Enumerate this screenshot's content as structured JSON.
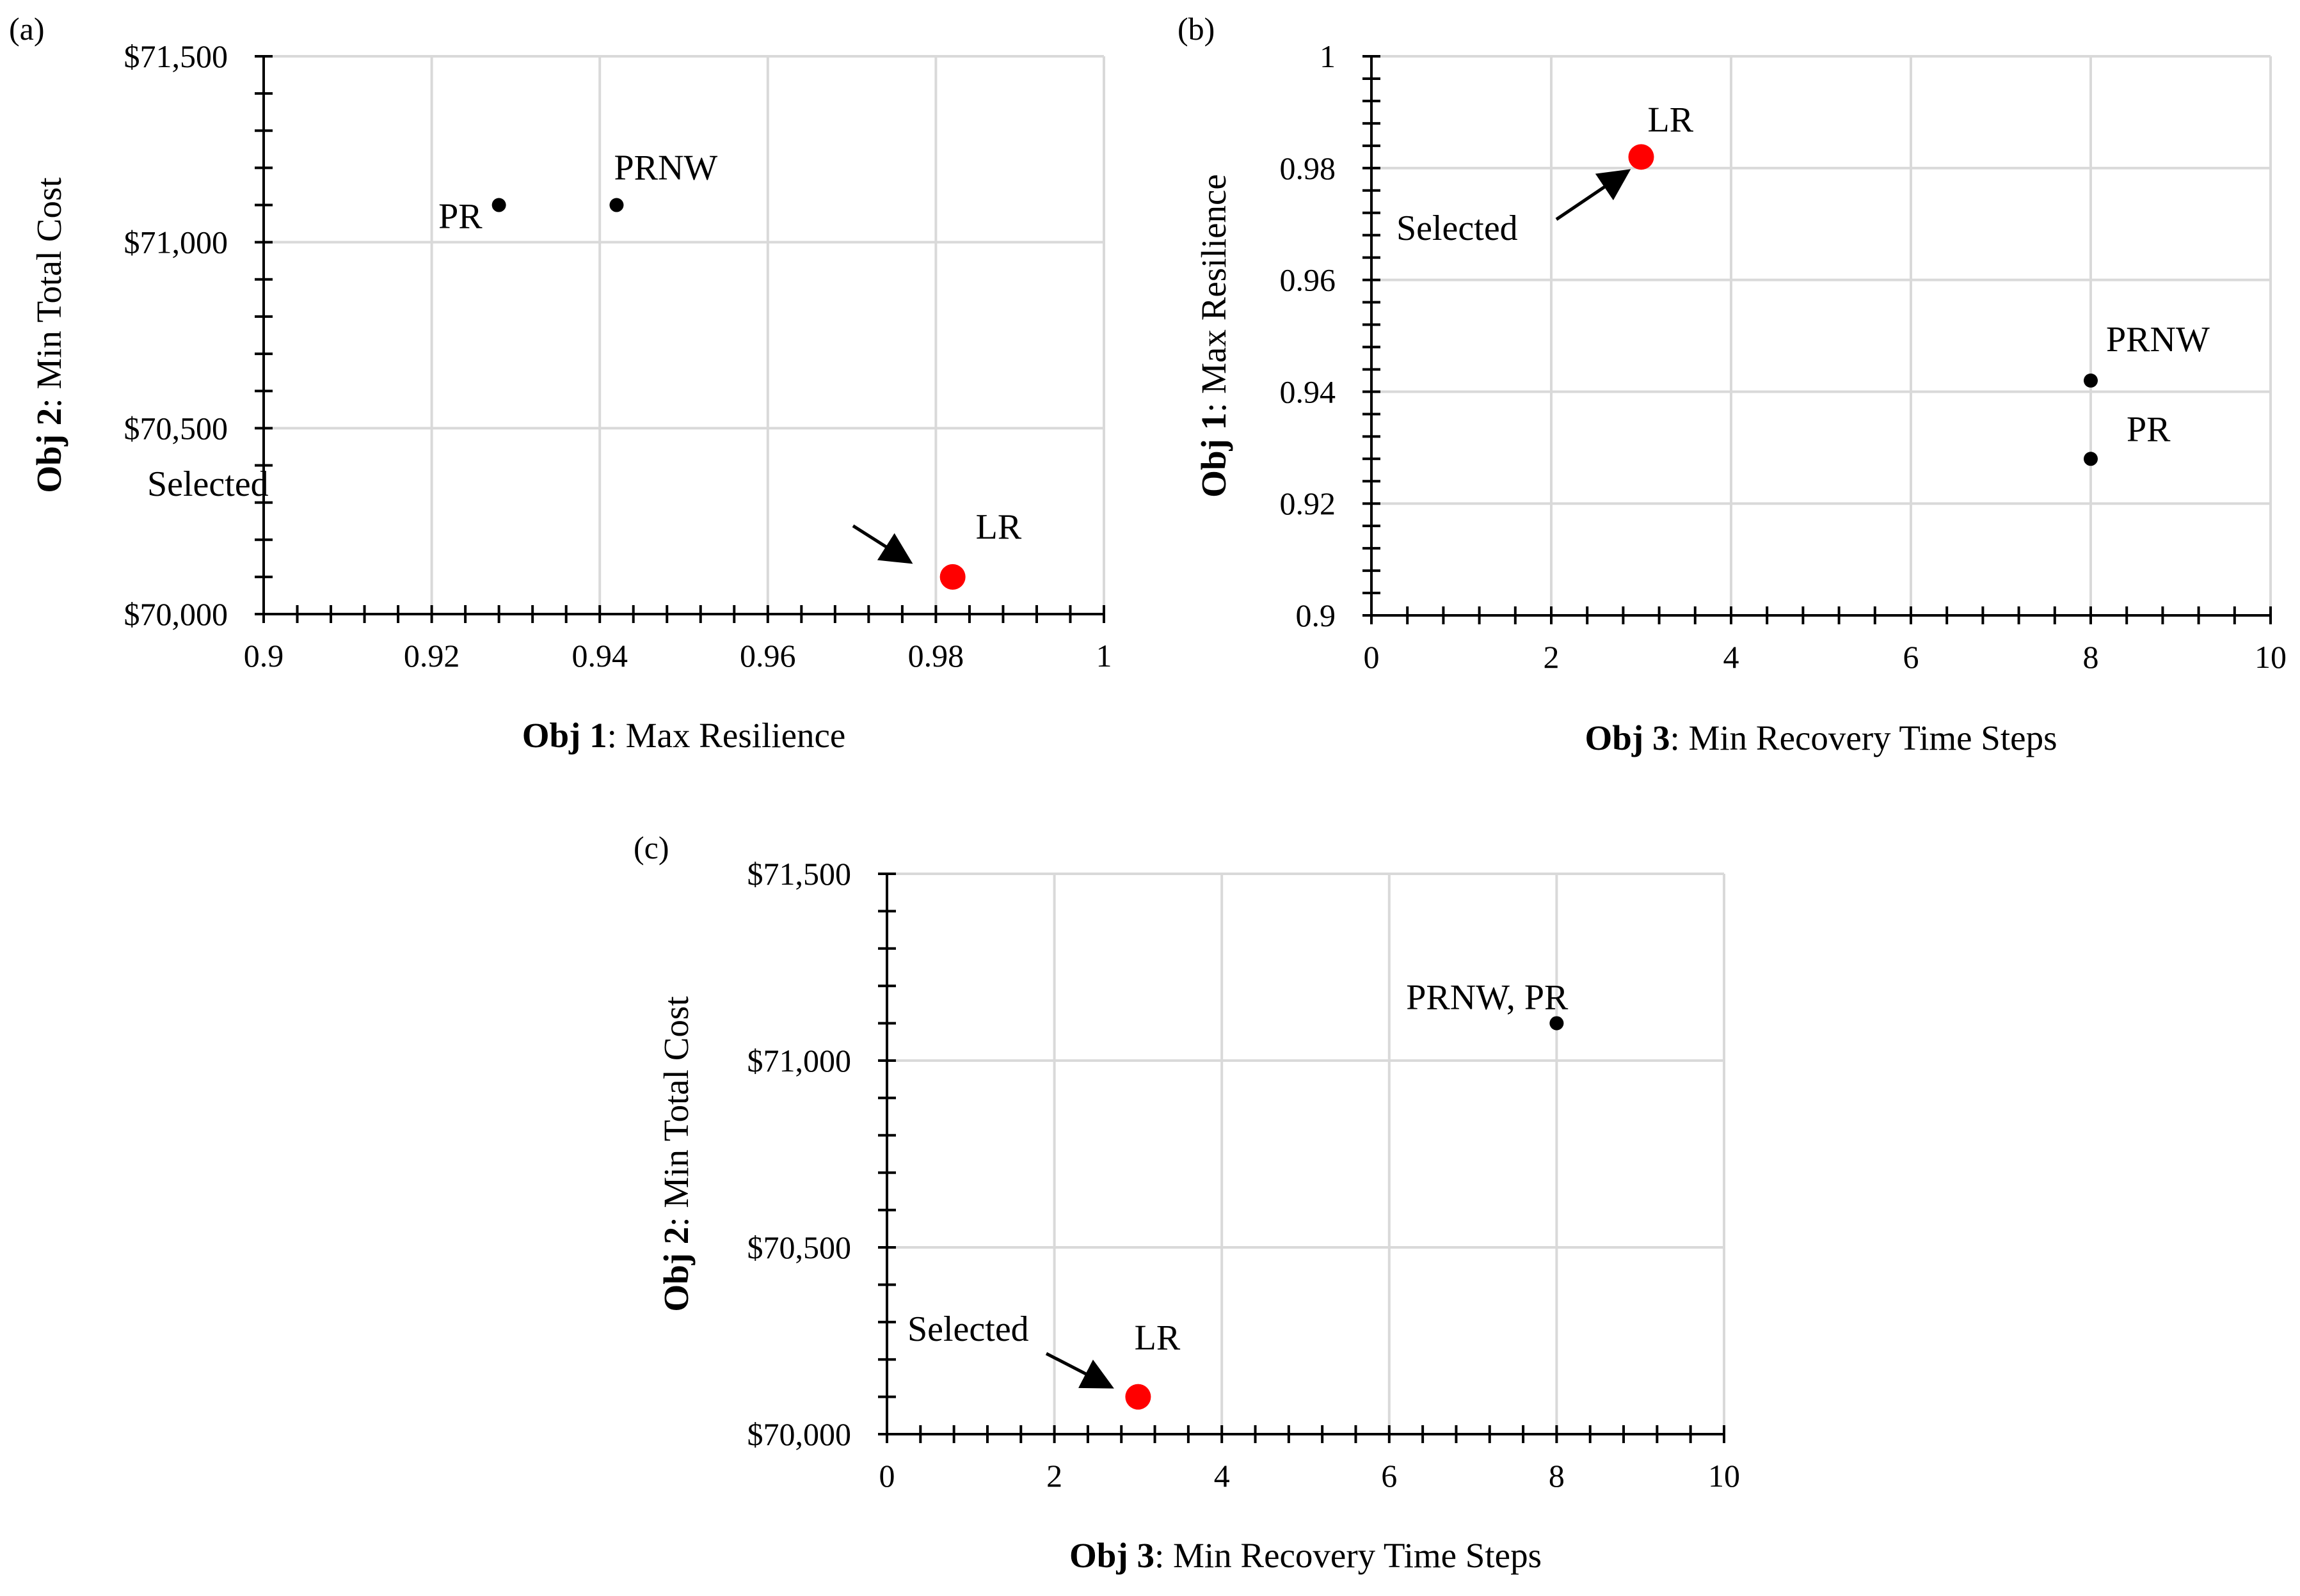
{
  "chart_data": [
    {
      "type": "scatter",
      "panel_label": "(a)",
      "title": "",
      "xlabel_bold": "Obj 1",
      "xlabel_rest": ": Max Resilience",
      "ylabel_bold": "Obj 2",
      "ylabel_rest": ": Min Total Cost",
      "xlim": [
        0.9,
        1
      ],
      "ylim": [
        70000,
        71500
      ],
      "xticks": [
        {
          "value": 0.9,
          "label": "0.9"
        },
        {
          "value": 0.92,
          "label": "0.92"
        },
        {
          "value": 0.94,
          "label": "0.94"
        },
        {
          "value": 0.96,
          "label": "0.96"
        },
        {
          "value": 0.98,
          "label": "0.98"
        },
        {
          "value": 1,
          "label": "1"
        }
      ],
      "yticks": [
        {
          "value": 70000,
          "label": "$70,000"
        },
        {
          "value": 70500,
          "label": "$70,500"
        },
        {
          "value": 71000,
          "label": "$71,000"
        },
        {
          "value": 71500,
          "label": "$71,500"
        }
      ],
      "points": [
        {
          "name": "PR",
          "x": 0.928,
          "y": 71100,
          "selected": false
        },
        {
          "name": "PRNW",
          "x": 0.942,
          "y": 71100,
          "selected": false
        },
        {
          "name": "LR",
          "x": 0.982,
          "y": 70100,
          "selected": true
        }
      ],
      "selected_annotation": "Selected"
    },
    {
      "type": "scatter",
      "panel_label": "(b)",
      "title": "",
      "xlabel_bold": "Obj 3",
      "xlabel_rest": ": Min Recovery  Time Steps",
      "ylabel_bold": "Obj 1",
      "ylabel_rest": ": Max Resilience",
      "xlim": [
        0,
        10
      ],
      "ylim": [
        0.9,
        1
      ],
      "xticks": [
        {
          "value": 0,
          "label": "0"
        },
        {
          "value": 2,
          "label": "2"
        },
        {
          "value": 4,
          "label": "4"
        },
        {
          "value": 6,
          "label": "6"
        },
        {
          "value": 8,
          "label": "8"
        },
        {
          "value": 10,
          "label": "10"
        }
      ],
      "yticks": [
        {
          "value": 0.9,
          "label": "0.9"
        },
        {
          "value": 0.92,
          "label": "0.92"
        },
        {
          "value": 0.94,
          "label": "0.94"
        },
        {
          "value": 0.96,
          "label": "0.96"
        },
        {
          "value": 0.98,
          "label": "0.98"
        },
        {
          "value": 1,
          "label": "1"
        }
      ],
      "points": [
        {
          "name": "LR",
          "x": 3,
          "y": 0.982,
          "selected": true
        },
        {
          "name": "PRNW",
          "x": 8,
          "y": 0.942,
          "selected": false
        },
        {
          "name": "PR",
          "x": 8,
          "y": 0.928,
          "selected": false
        }
      ],
      "selected_annotation": "Selected"
    },
    {
      "type": "scatter",
      "panel_label": "(c)",
      "title": "",
      "xlabel_bold": "Obj 3",
      "xlabel_rest": ": Min Recovery  Time Steps",
      "ylabel_bold": "Obj 2",
      "ylabel_rest": ": Min  Total Cost",
      "xlim": [
        0,
        10
      ],
      "ylim": [
        70000,
        71500
      ],
      "xticks": [
        {
          "value": 0,
          "label": "0"
        },
        {
          "value": 2,
          "label": "2"
        },
        {
          "value": 4,
          "label": "4"
        },
        {
          "value": 6,
          "label": "6"
        },
        {
          "value": 8,
          "label": "8"
        },
        {
          "value": 10,
          "label": "10"
        }
      ],
      "yticks": [
        {
          "value": 70000,
          "label": "$70,000"
        },
        {
          "value": 70500,
          "label": "$70,500"
        },
        {
          "value": 71000,
          "label": "$71,000"
        },
        {
          "value": 71500,
          "label": "$71,500"
        }
      ],
      "points": [
        {
          "name": "PRNW, PR",
          "x": 8,
          "y": 71100,
          "selected": false
        },
        {
          "name": "LR",
          "x": 3,
          "y": 70100,
          "selected": true
        }
      ],
      "selected_annotation": "Selected"
    }
  ],
  "colors": {
    "selected_point": "#ff0000",
    "normal_point": "#000000",
    "grid": "#d9d9d9"
  }
}
